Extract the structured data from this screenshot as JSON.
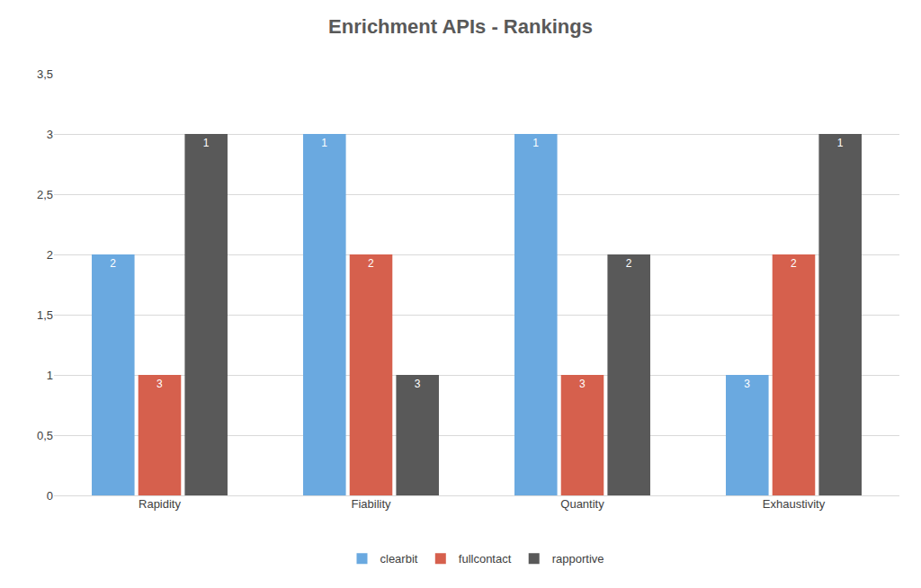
{
  "chart_data": {
    "type": "bar",
    "title": "Enrichment APIs - Rankings",
    "categories": [
      "Rapidity",
      "Fiability",
      "Quantity",
      "Exhaustivity"
    ],
    "series": [
      {
        "name": "clearbit",
        "color": "#6aa9e0",
        "values": [
          2,
          3,
          3,
          1
        ],
        "ranks": [
          2,
          1,
          1,
          3
        ]
      },
      {
        "name": "fullcontact",
        "color": "#d6604d",
        "values": [
          1,
          2,
          1,
          2
        ],
        "ranks": [
          3,
          2,
          3,
          2
        ]
      },
      {
        "name": "rapportive",
        "color": "#595959",
        "values": [
          3,
          1,
          2,
          3
        ],
        "ranks": [
          1,
          3,
          2,
          1
        ]
      }
    ],
    "ylim": [
      0,
      3.5
    ],
    "yticks": [
      0,
      {
        "value": 0.5,
        "label": "0,5"
      },
      1,
      {
        "value": 1.5,
        "label": "1,5"
      },
      2,
      {
        "value": 2.5,
        "label": "2,5"
      },
      3,
      {
        "value": 3.5,
        "label": "3,5"
      }
    ],
    "grid": true,
    "legend": "bottom"
  }
}
